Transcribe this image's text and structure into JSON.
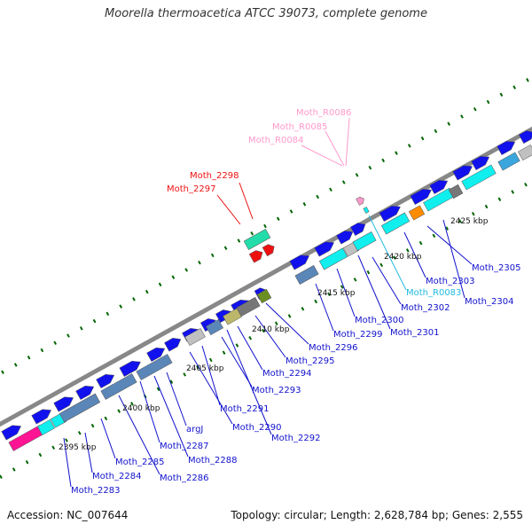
{
  "title": "Moorella thermoacetica ATCC 39073, complete genome",
  "footer": {
    "accession": "Accession: NC_007644",
    "stats": "Topology: circular; Length: 2,628,784 bp; Genes: 2,555"
  },
  "scale_labels": [
    "2395 kbp",
    "2400 kbp",
    "2405 kbp",
    "2410 kbp",
    "2415 kbp",
    "2420 kbp",
    "2425 kbp"
  ],
  "colors": {
    "cds": "#1111ee",
    "steelblue": "#5b86b8",
    "cyan": "#11eeee",
    "pink": "#ff1493",
    "seagreen": "#22ddaa",
    "red": "#ee1111",
    "orange": "#ff8c00",
    "olive": "#6b8e23",
    "grey": "#c0c0c0",
    "darkgrey": "#777777",
    "khaki": "#bdb76b",
    "skyblue": "#3aa6dd",
    "rna": "#ff99cc",
    "backbone": "#888888",
    "ticks": "#006400"
  },
  "gene_labels": {
    "red": [
      "Moth_2298",
      "Moth_2297"
    ],
    "pink": [
      "Moth_R0086",
      "Moth_R0085",
      "Moth_R0084"
    ],
    "cyan": [
      "Moth_R0083"
    ],
    "blue": [
      "Moth_2305",
      "Moth_2303",
      "Moth_2304",
      "Moth_2302",
      "Moth_2300",
      "Moth_2301",
      "Moth_2299",
      "Moth_2296",
      "Moth_2295",
      "Moth_2294",
      "Moth_2293",
      "Moth_2291",
      "Moth_2290",
      "Moth_2292",
      "argJ",
      "Moth_2287",
      "Moth_2288",
      "Moth_2285",
      "Moth_2286",
      "Moth_2284",
      "Moth_2283"
    ]
  }
}
